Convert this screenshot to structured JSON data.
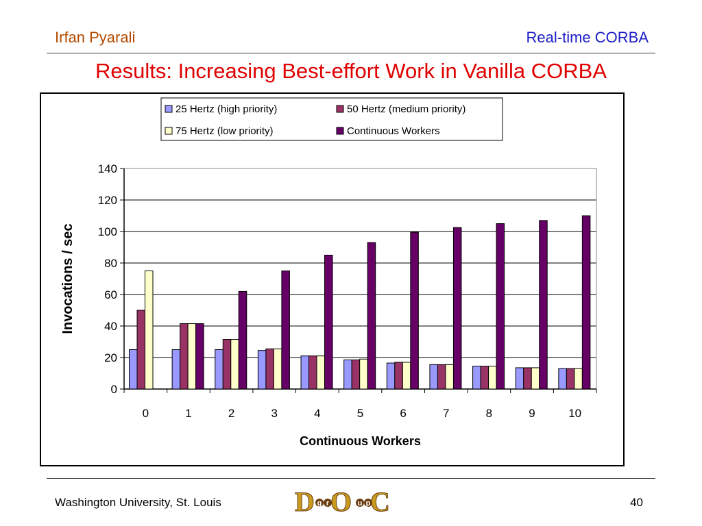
{
  "header": {
    "author": "Irfan Pyarali",
    "topic": "Real-time CORBA"
  },
  "slide": {
    "title": "Results: Increasing Best-effort Work in Vanilla CORBA"
  },
  "footer": {
    "institution": "Washington University, St. Louis",
    "page_number": "40"
  },
  "logo": {
    "letters": [
      "D",
      "O",
      "C"
    ],
    "small_letters": [
      "g",
      "r",
      "u",
      "p"
    ],
    "colors": {
      "gold": "#c99a1e",
      "dark": "#6b3e12"
    }
  },
  "colors": {
    "title": "#e00000",
    "author": "#b34a00",
    "topic": "#1c1cc8"
  },
  "chart_data": {
    "type": "bar",
    "title": "",
    "xlabel": "Continuous Workers",
    "ylabel": "Invocations / sec",
    "categories": [
      "0",
      "1",
      "2",
      "3",
      "4",
      "5",
      "6",
      "7",
      "8",
      "9",
      "10"
    ],
    "ylim": [
      0,
      140
    ],
    "yticks": [
      "0",
      "20",
      "40",
      "60",
      "80",
      "100",
      "120",
      "140"
    ],
    "grid": true,
    "legend_position": "top",
    "series": [
      {
        "name": "25 Hertz (high priority)",
        "color": "#9999ff",
        "values": [
          25,
          25,
          25,
          24.5,
          21,
          18.5,
          16.5,
          15.5,
          14.5,
          13.5,
          13
        ]
      },
      {
        "name": "50 Hertz (medium priority)",
        "color": "#993366",
        "values": [
          50,
          41.5,
          31.5,
          25.5,
          21,
          18.5,
          17,
          15.5,
          14.5,
          13.5,
          13
        ]
      },
      {
        "name": "75 Hertz (low priority)",
        "color": "#ffffcc",
        "values": [
          75,
          41.5,
          31.5,
          25.5,
          21,
          19,
          17,
          15.5,
          14.5,
          13.5,
          13
        ]
      },
      {
        "name": "Continuous Workers",
        "color": "#660066",
        "values": [
          null,
          41.5,
          62,
          75,
          85,
          93,
          99.5,
          102.5,
          105,
          107,
          110
        ]
      }
    ]
  }
}
